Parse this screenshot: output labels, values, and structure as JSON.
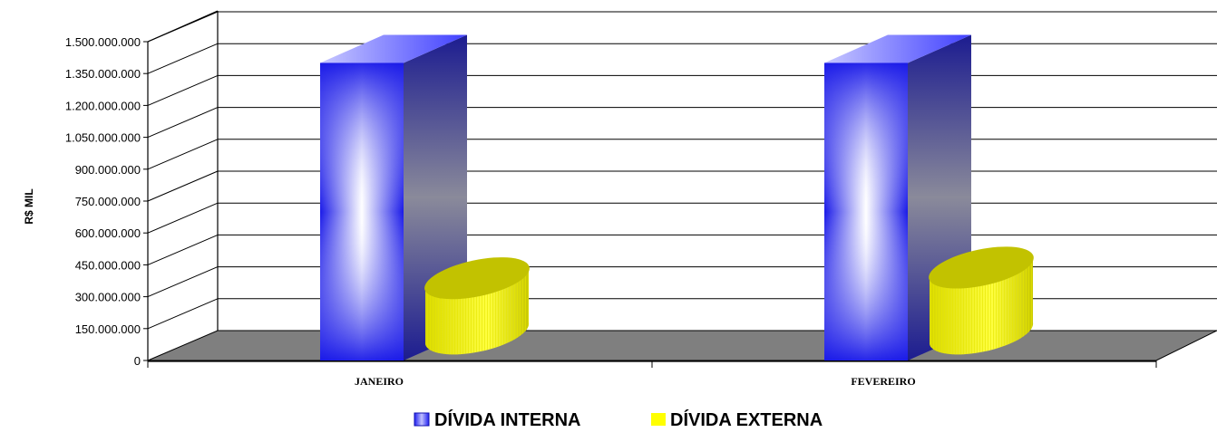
{
  "chart_data": {
    "type": "bar",
    "title": "",
    "xlabel": "",
    "ylabel": "R$ MIL",
    "categories": [
      "JANEIRO",
      "FEVEREIRO"
    ],
    "ylim": [
      0,
      1500000000
    ],
    "yticks": [
      0,
      150000000,
      300000000,
      450000000,
      600000000,
      750000000,
      900000000,
      1050000000,
      1200000000,
      1350000000,
      1500000000
    ],
    "ytick_labels": [
      "0",
      "150.000.000",
      "300.000.000",
      "450.000.000",
      "600.000.000",
      "750.000.000",
      "900.000.000",
      "1.050.000.000",
      "1.200.000.000",
      "1.350.000.000",
      "1.500.000.000"
    ],
    "grid": true,
    "legend_position": "bottom",
    "series": [
      {
        "name": "DÍVIDA INTERNA",
        "values": [
          1400000000,
          1400000000
        ],
        "color": "#2020f0"
      },
      {
        "name": "DÍVIDA EXTERNA",
        "values": [
          370000000,
          420000000
        ],
        "color": "#f0f000"
      }
    ]
  }
}
